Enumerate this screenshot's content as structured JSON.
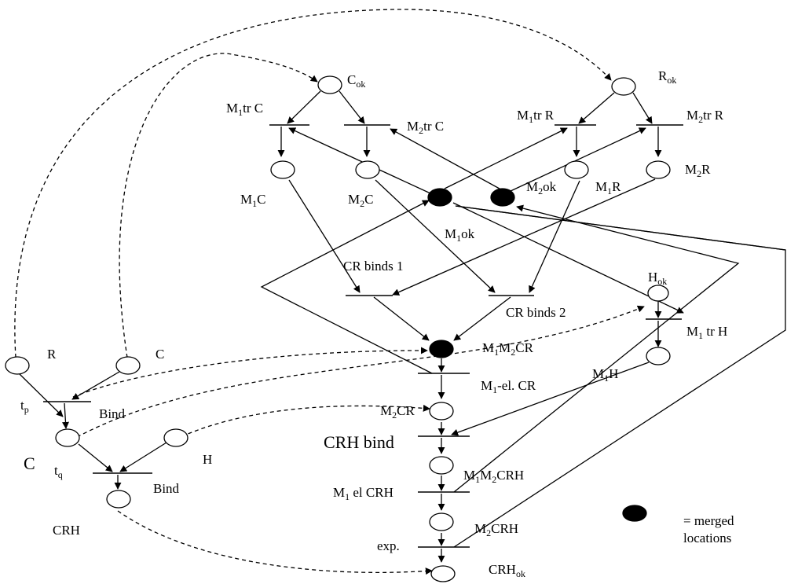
{
  "labels": {
    "C_ok": {
      "base": "C",
      "sub": "ok"
    },
    "R_ok": {
      "base": "R",
      "sub": "ok"
    },
    "m1_tr_c": {
      "pre": "M",
      "sub": "1",
      "post": "tr C"
    },
    "m2_tr_c": {
      "pre": "M",
      "sub": "2",
      "post": "tr C"
    },
    "m1_tr_r": {
      "pre": "M",
      "sub": "1",
      "post": "tr R"
    },
    "m2_tr_r": {
      "pre": "M",
      "sub": "2",
      "post": "tr R"
    },
    "m1c": {
      "pre": "M",
      "sub": "1",
      "post": "C"
    },
    "m2c": {
      "pre": "M",
      "sub": "2",
      "post": "C"
    },
    "m2ok": {
      "pre": "M",
      "sub": "2",
      "post": "ok"
    },
    "m1r": {
      "pre": "M",
      "sub": "1",
      "post": "R"
    },
    "m2r": {
      "pre": "M",
      "sub": "2",
      "post": "R"
    },
    "m1ok": {
      "pre": "M",
      "sub": "1",
      "post": "ok"
    },
    "cr_binds_1": "CR binds 1",
    "cr_binds_2": "CR binds 2",
    "h_ok": {
      "base": "H",
      "sub": "ok"
    },
    "m1_tr_h": {
      "pre": "M",
      "sub": "1",
      "post": " tr H"
    },
    "m1m2cr": {
      "pre": "M",
      "sub": "1",
      "mid": "M",
      "sub2": "2",
      "post": "CR"
    },
    "m1_el_cr": {
      "pre": "M",
      "sub": "1",
      "post": "-el. CR"
    },
    "m1h": {
      "pre": "M",
      "sub": "1",
      "post": "H"
    },
    "m2cr": {
      "pre": "M",
      "sub": "2",
      "post": "CR"
    },
    "crh_bind": "CRH bind",
    "m1m2crh": {
      "pre": "M",
      "sub": "1",
      "mid": "M",
      "sub2": "2",
      "post": "CRH"
    },
    "m1_el_crh": {
      "pre": "M",
      "sub": "1",
      "post": " el CRH"
    },
    "m2crh": {
      "pre": "M",
      "sub": "2",
      "post": "CRH"
    },
    "exp": "exp.",
    "crh_ok": {
      "base": "CRH",
      "sub": "ok"
    },
    "r": "R",
    "c_top": "C",
    "t_p": {
      "base": "t",
      "sub": "p"
    },
    "bind_1": "Bind",
    "c_big": "C",
    "h": "H",
    "t_q": {
      "base": "t",
      "sub": "q"
    },
    "bind_2": "Bind",
    "crh": "CRH"
  },
  "legend": {
    "line1": "= merged",
    "line2": "locations"
  }
}
